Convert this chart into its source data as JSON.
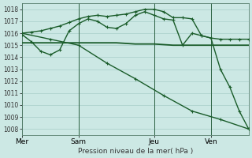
{
  "background_color": "#cce8e4",
  "grid_color": "#a8cec8",
  "line_color": "#1a5c2a",
  "xlabel": "Pression niveau de la mer( hPa )",
  "ylim": [
    1007.5,
    1018.5
  ],
  "yticks": [
    1008,
    1009,
    1010,
    1011,
    1012,
    1013,
    1014,
    1015,
    1016,
    1017,
    1018
  ],
  "xtick_labels": [
    "Mer",
    "Sam",
    "Jeu",
    "Ven"
  ],
  "xtick_positions": [
    0,
    6,
    14,
    20
  ],
  "vline_positions": [
    0,
    6,
    14,
    20
  ],
  "xlim": [
    0,
    24
  ],
  "series_flat": {
    "x": [
      0,
      2,
      4,
      6,
      8,
      10,
      12,
      14,
      16,
      18,
      20,
      22,
      24
    ],
    "y": [
      1015.2,
      1015.2,
      1015.2,
      1015.2,
      1015.2,
      1015.2,
      1015.1,
      1015.1,
      1015.0,
      1015.0,
      1015.0,
      1015.0,
      1015.0
    ]
  },
  "series_diagonal": {
    "x": [
      0,
      3,
      6,
      9,
      12,
      15,
      18,
      21,
      24
    ],
    "y": [
      1016.0,
      1015.5,
      1015.0,
      1013.5,
      1012.2,
      1010.8,
      1009.5,
      1008.8,
      1008.0
    ]
  },
  "series_upper": {
    "x": [
      0,
      1,
      2,
      3,
      4,
      5,
      6,
      7,
      8,
      9,
      10,
      11,
      12,
      13,
      14,
      15,
      16,
      17,
      18,
      19,
      20,
      21,
      22,
      23,
      24
    ],
    "y": [
      1016.0,
      1016.1,
      1016.2,
      1016.4,
      1016.6,
      1016.9,
      1017.2,
      1017.4,
      1017.5,
      1017.4,
      1017.5,
      1017.6,
      1017.8,
      1018.0,
      1018.0,
      1017.8,
      1017.3,
      1017.3,
      1017.2,
      1015.8,
      1015.6,
      1015.5,
      1015.5,
      1015.5,
      1015.5
    ]
  },
  "series_mid": {
    "x": [
      0,
      1,
      2,
      3,
      4,
      5,
      6,
      7,
      8,
      9,
      10,
      11,
      12,
      13,
      14,
      15,
      16,
      17,
      18,
      19,
      20,
      21,
      22,
      23,
      24
    ],
    "y": [
      1015.9,
      1015.3,
      1014.5,
      1014.2,
      1014.6,
      1016.2,
      1016.8,
      1017.2,
      1017.0,
      1016.5,
      1016.4,
      1016.8,
      1017.5,
      1017.8,
      1017.5,
      1017.2,
      1017.1,
      1015.0,
      1016.0,
      1015.8,
      1015.6,
      1013.0,
      1011.5,
      1009.5,
      1008.0
    ]
  }
}
